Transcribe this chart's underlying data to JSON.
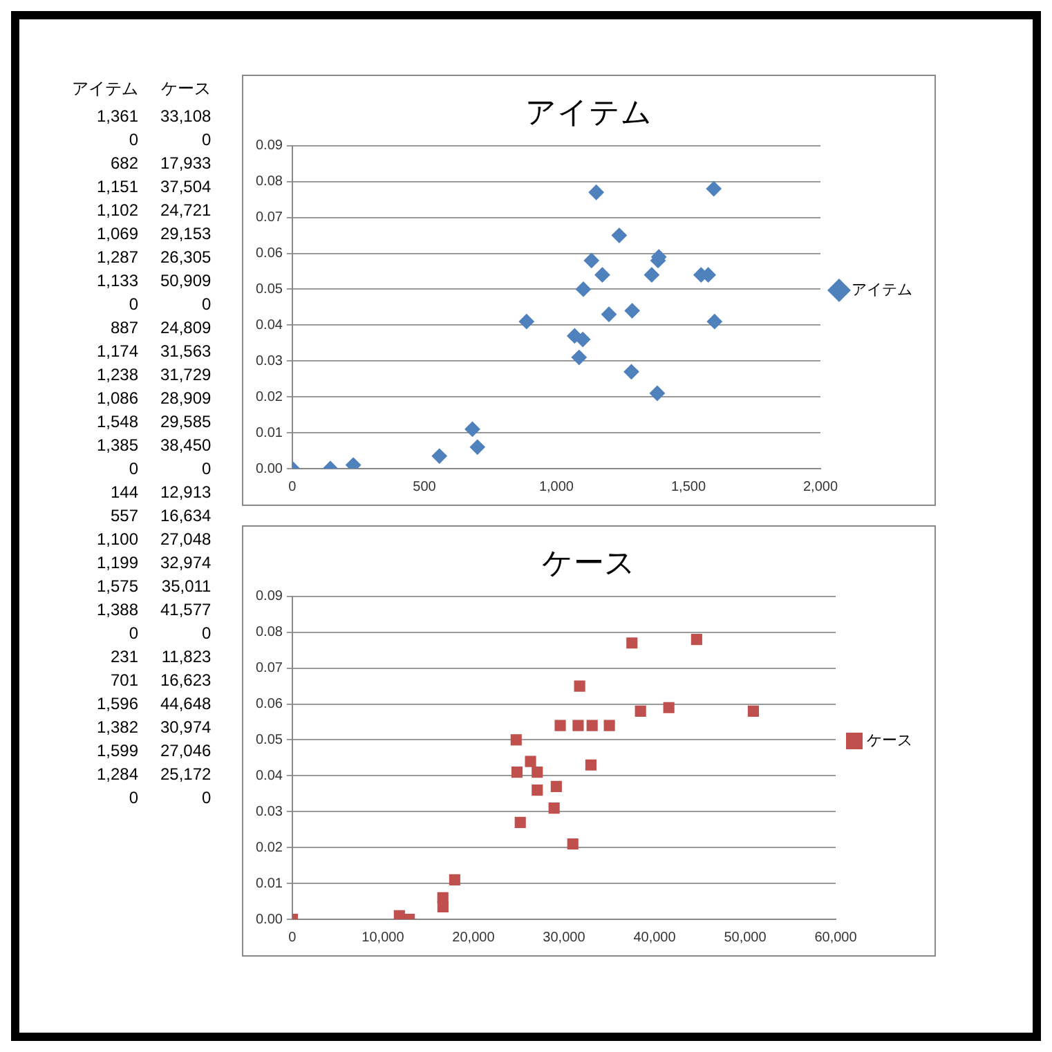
{
  "chart_data": [
    {
      "type": "other",
      "categories": [
        "アイテム",
        "ケース"
      ],
      "annotations": [
        "1,361",
        "33,108",
        "0",
        "0",
        "682",
        "17,933",
        "1,151",
        "37,504",
        "1,102",
        "24,721",
        "1,069",
        "29,153",
        "1,287",
        "26,305",
        "1,133",
        "50,909",
        "0",
        "0",
        "887",
        "24,809",
        "1,174",
        "31,563",
        "1,238",
        "31,729",
        "1,086",
        "28,909",
        "1,548",
        "29,585",
        "1,385",
        "38,450",
        "0",
        "0",
        "144",
        "12,913",
        "557",
        "16,634",
        "1,100",
        "27,048",
        "1,199",
        "32,974",
        "1,575",
        "35,011",
        "1,388",
        "41,577",
        "0",
        "0",
        "231",
        "11,823",
        "701",
        "16,623",
        "1,596",
        "44,648",
        "1,382",
        "30,974",
        "1,599",
        "27,046",
        "1,284",
        "25,172",
        "0",
        "0"
      ]
    },
    {
      "type": "scatter",
      "title": "アイテム",
      "series": [
        {
          "name": "アイテム",
          "color": "#4f81bd",
          "x": [
            1361,
            0,
            682,
            1151,
            1102,
            1069,
            1287,
            1133,
            887,
            1174,
            1238,
            1086,
            1548,
            1385,
            144,
            557,
            1100,
            1199,
            1575,
            1388,
            231,
            701,
            1596,
            1382,
            1599,
            1284
          ],
          "values": [
            0.054,
            0,
            0.011,
            0.077,
            0.05,
            0.037,
            0.044,
            0.058,
            0.041,
            0.054,
            0.065,
            0.031,
            0.054,
            0.058,
            0,
            0.0035,
            0.036,
            0.043,
            0.054,
            0.059,
            0.001,
            0.006,
            0.078,
            0.021,
            0.041,
            0.027
          ]
        }
      ],
      "xlim": [
        0,
        2000
      ],
      "xticks": [
        {
          "value": 0,
          "label": "0"
        },
        {
          "value": 500,
          "label": "500"
        },
        {
          "value": 1000,
          "label": "1,000"
        },
        {
          "value": 1500,
          "label": "1,500"
        },
        {
          "value": 2000,
          "label": "2,000"
        }
      ],
      "ylim": [
        0,
        0.09
      ],
      "yticks": [
        {
          "value": 0,
          "label": "0.00"
        },
        {
          "value": 0.01,
          "label": "0.01"
        },
        {
          "value": 0.02,
          "label": "0.02"
        },
        {
          "value": 0.03,
          "label": "0.03"
        },
        {
          "value": 0.04,
          "label": "0.04"
        },
        {
          "value": 0.05,
          "label": "0.05"
        },
        {
          "value": 0.06,
          "label": "0.06"
        },
        {
          "value": 0.07,
          "label": "0.07"
        },
        {
          "value": 0.08,
          "label": "0.08"
        },
        {
          "value": 0.09,
          "label": "0.09"
        }
      ],
      "grid": "y",
      "legend": "right",
      "marker": "diamond"
    },
    {
      "type": "scatter",
      "title": "ケース",
      "series": [
        {
          "name": "ケース",
          "color": "#c0504d",
          "x": [
            33108,
            0,
            17933,
            37504,
            24721,
            29153,
            26305,
            50909,
            24809,
            31563,
            31729,
            28909,
            29585,
            38450,
            12913,
            16634,
            27048,
            32974,
            35011,
            41577,
            11823,
            16623,
            44648,
            30974,
            27046,
            25172
          ],
          "values": [
            0.054,
            0,
            0.011,
            0.077,
            0.05,
            0.037,
            0.044,
            0.058,
            0.041,
            0.054,
            0.065,
            0.031,
            0.054,
            0.058,
            0,
            0.0035,
            0.036,
            0.043,
            0.054,
            0.059,
            0.001,
            0.006,
            0.078,
            0.021,
            0.041,
            0.027
          ]
        }
      ],
      "xlim": [
        0,
        60000
      ],
      "xticks": [
        {
          "value": 0,
          "label": "0"
        },
        {
          "value": 10000,
          "label": "10,000"
        },
        {
          "value": 20000,
          "label": "20,000"
        },
        {
          "value": 30000,
          "label": "30,000"
        },
        {
          "value": 40000,
          "label": "40,000"
        },
        {
          "value": 50000,
          "label": "50,000"
        },
        {
          "value": 60000,
          "label": "60,000"
        }
      ],
      "ylim": [
        0,
        0.09
      ],
      "yticks": [
        {
          "value": 0,
          "label": "0.00"
        },
        {
          "value": 0.01,
          "label": "0.01"
        },
        {
          "value": 0.02,
          "label": "0.02"
        },
        {
          "value": 0.03,
          "label": "0.03"
        },
        {
          "value": 0.04,
          "label": "0.04"
        },
        {
          "value": 0.05,
          "label": "0.05"
        },
        {
          "value": 0.06,
          "label": "0.06"
        },
        {
          "value": 0.07,
          "label": "0.07"
        },
        {
          "value": 0.08,
          "label": "0.08"
        },
        {
          "value": 0.09,
          "label": "0.09"
        }
      ],
      "grid": "y",
      "legend": "right",
      "marker": "square"
    }
  ]
}
